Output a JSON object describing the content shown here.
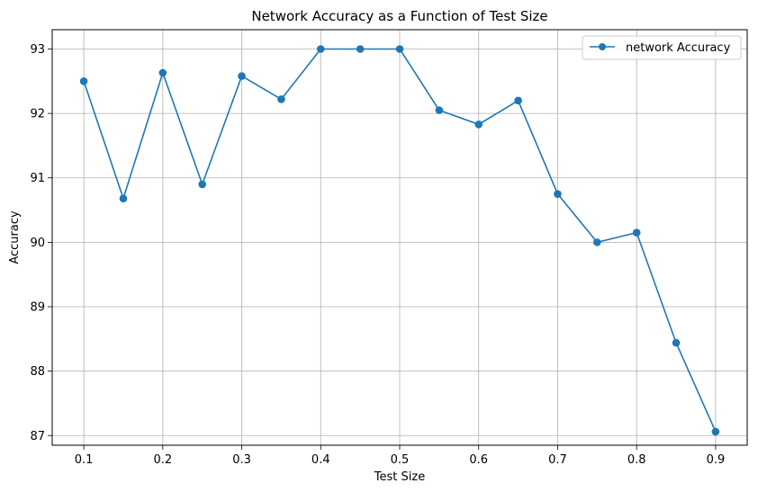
{
  "chart_data": {
    "type": "line",
    "title": "Network Accuracy as a Function of Test Size",
    "xlabel": "Test Size",
    "ylabel": "Accuracy",
    "xlim": [
      0.06,
      0.94
    ],
    "ylim": [
      86.85,
      93.3
    ],
    "grid": true,
    "legend_position": "top-right",
    "x_ticks": [
      "0.1",
      "0.2",
      "0.3",
      "0.4",
      "0.5",
      "0.6",
      "0.7",
      "0.8",
      "0.9"
    ],
    "y_ticks": [
      "87",
      "88",
      "89",
      "90",
      "91",
      "92",
      "93"
    ],
    "series": [
      {
        "name": "network Accuracy",
        "color": "#1f77b4",
        "marker": "circle",
        "x": [
          0.1,
          0.15,
          0.2,
          0.25,
          0.3,
          0.35,
          0.4,
          0.45,
          0.5,
          0.55,
          0.6,
          0.65,
          0.7,
          0.75,
          0.8,
          0.85,
          0.9
        ],
        "y": [
          92.5,
          90.68,
          92.63,
          90.9,
          92.58,
          92.22,
          93.0,
          93.0,
          93.0,
          92.05,
          91.83,
          92.2,
          90.75,
          90.0,
          90.15,
          88.44,
          87.06
        ]
      }
    ]
  }
}
